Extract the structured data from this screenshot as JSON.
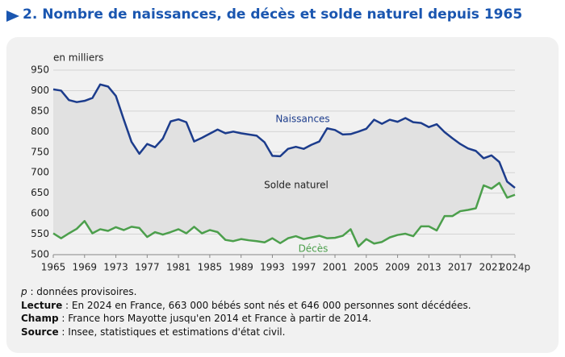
{
  "chart_data": {
    "type": "line",
    "title": "2. Nombre de naissances, de décès et solde naturel depuis 1965",
    "y_label": "en milliers",
    "x": [
      1965,
      1966,
      1967,
      1968,
      1969,
      1970,
      1971,
      1972,
      1973,
      1974,
      1975,
      1976,
      1977,
      1978,
      1979,
      1980,
      1981,
      1982,
      1983,
      1984,
      1985,
      1986,
      1987,
      1988,
      1989,
      1990,
      1991,
      1992,
      1993,
      1994,
      1995,
      1996,
      1997,
      1998,
      1999,
      2000,
      2001,
      2002,
      2003,
      2004,
      2005,
      2006,
      2007,
      2008,
      2009,
      2010,
      2011,
      2012,
      2013,
      2014,
      2015,
      2016,
      2017,
      2018,
      2019,
      2020,
      2021,
      2022,
      2023,
      2024
    ],
    "series": [
      {
        "name": "Naissances",
        "color": "#1c3c8c",
        "values": [
          903,
          900,
          877,
          872,
          875,
          882,
          915,
          910,
          887,
          830,
          775,
          746,
          770,
          762,
          783,
          825,
          830,
          823,
          776,
          785,
          795,
          805,
          796,
          800,
          796,
          793,
          790,
          774,
          741,
          740,
          758,
          763,
          758,
          768,
          776,
          808,
          804,
          793,
          794,
          800,
          807,
          829,
          819,
          829,
          824,
          833,
          823,
          821,
          811,
          818,
          799,
          784,
          770,
          759,
          753,
          735,
          742,
          726,
          678,
          663
        ]
      },
      {
        "name": "Décès",
        "color": "#4c9f4c",
        "values": [
          552,
          540,
          552,
          563,
          582,
          552,
          562,
          558,
          567,
          560,
          568,
          565,
          543,
          555,
          549,
          555,
          562,
          552,
          568,
          552,
          560,
          555,
          536,
          533,
          538,
          535,
          533,
          530,
          540,
          528,
          540,
          545,
          538,
          542,
          546,
          540,
          541,
          546,
          562,
          520,
          538,
          527,
          531,
          542,
          548,
          551,
          545,
          569,
          569,
          559,
          594,
          594,
          606,
          609,
          613,
          669,
          661,
          675,
          639,
          646
        ]
      }
    ],
    "area_label": "Solde naturel",
    "xlim": [
      1965,
      2024
    ],
    "xticks": [
      1965,
      1969,
      1973,
      1977,
      1981,
      1985,
      1989,
      1993,
      1997,
      2001,
      2005,
      2009,
      2013,
      2017,
      2021,
      {
        "value": 2024,
        "label": "2024p"
      }
    ],
    "ylim": [
      500,
      950
    ],
    "yticks": [
      500,
      550,
      600,
      650,
      700,
      750,
      800,
      850,
      900,
      950
    ],
    "grid": true,
    "notes": [
      {
        "label": "p",
        "text": " : données provisoires."
      },
      {
        "label": "Lecture",
        "text": " : En 2024 en France, 663 000 bébés sont nés et 646 000 personnes sont décédées."
      },
      {
        "label": "Champ",
        "text": " : France hors Mayotte jusqu'en 2014 et France à partir de 2014."
      },
      {
        "label": "Source",
        "text": " : Insee, statistiques et estimations d'état civil."
      }
    ]
  }
}
